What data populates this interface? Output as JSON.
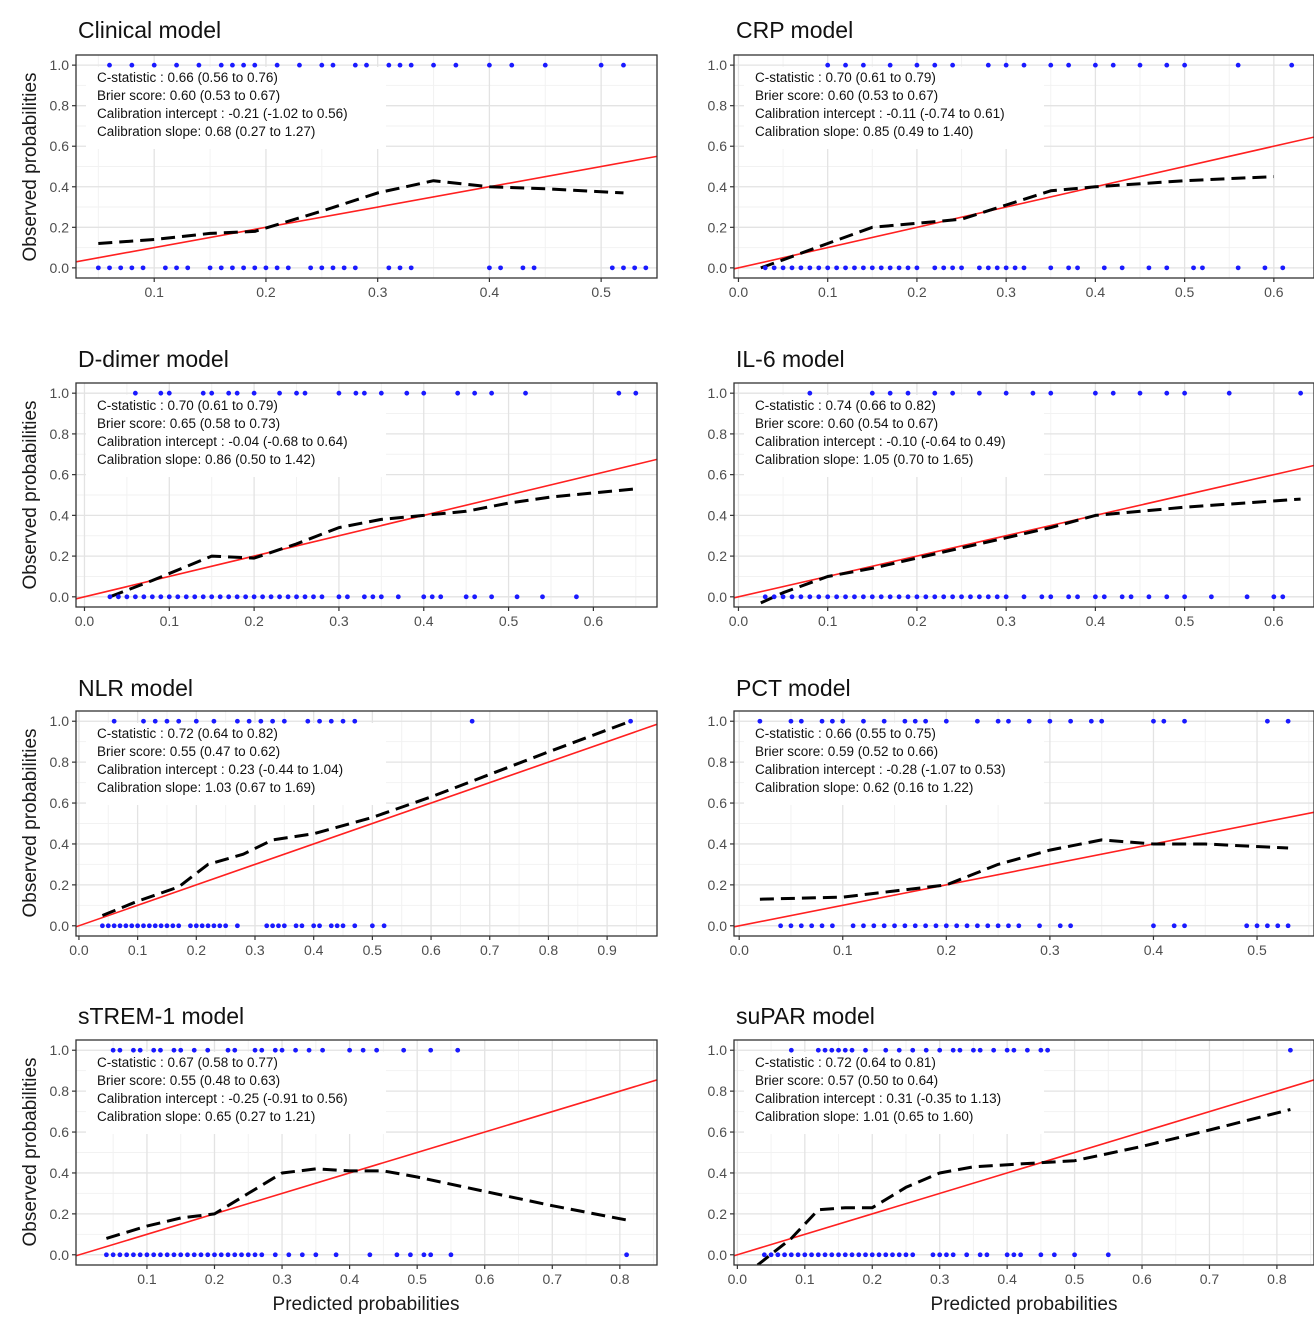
{
  "figure": {
    "ylabel": "Observed probabilities",
    "xlabel": "Predicted probabilities",
    "colors": {
      "ideal_line": "#ff2020",
      "calibration_curve": "#000000",
      "rug_points": "#1a1aff",
      "grid_major": "#e3e3e3",
      "grid_minor": "#f2f2f2",
      "panel_border": "#333333"
    }
  },
  "chart_data": [
    {
      "type": "line",
      "title": "Clinical model",
      "xlim": [
        0.03,
        0.55
      ],
      "ylim": [
        -0.05,
        1.05
      ],
      "xticks": [
        0.1,
        0.2,
        0.3,
        0.4,
        0.5
      ],
      "xtick_labels": [
        "0.1",
        "0.2",
        "0.3",
        "0.4",
        "0.5"
      ],
      "yticks": [
        0,
        0.2,
        0.4,
        0.6,
        0.8,
        1
      ],
      "ytick_labels": [
        "0.0",
        "0.2",
        "0.4",
        "0.6",
        "0.8",
        "1.0"
      ],
      "stats": [
        "C-statistic : 0.66 (0.56 to 0.76)",
        "Brier score:  0.60 (0.53  to 0.67)",
        "Calibration intercept : -0.21 (-1.02 to 0.56)",
        "Calibration slope:  0.68 (0.27 to 1.27)"
      ],
      "curve": {
        "x": [
          0.05,
          0.1,
          0.15,
          0.19,
          0.25,
          0.3,
          0.35,
          0.4,
          0.45,
          0.52
        ],
        "y": [
          0.12,
          0.14,
          0.17,
          0.18,
          0.28,
          0.37,
          0.43,
          0.4,
          0.39,
          0.37
        ]
      },
      "rug_top": [
        0.06,
        0.08,
        0.1,
        0.12,
        0.14,
        0.16,
        0.17,
        0.18,
        0.19,
        0.21,
        0.23,
        0.25,
        0.26,
        0.28,
        0.29,
        0.31,
        0.32,
        0.33,
        0.35,
        0.37,
        0.4,
        0.42,
        0.45,
        0.5,
        0.52
      ],
      "rug_bottom": [
        0.05,
        0.06,
        0.07,
        0.08,
        0.09,
        0.11,
        0.12,
        0.13,
        0.15,
        0.16,
        0.17,
        0.18,
        0.19,
        0.2,
        0.21,
        0.22,
        0.24,
        0.25,
        0.26,
        0.27,
        0.28,
        0.31,
        0.32,
        0.33,
        0.4,
        0.41,
        0.43,
        0.44,
        0.51,
        0.52,
        0.53,
        0.54
      ]
    },
    {
      "type": "line",
      "title": "CRP model",
      "xlim": [
        -0.005,
        0.645
      ],
      "ylim": [
        -0.05,
        1.05
      ],
      "xticks": [
        0,
        0.1,
        0.2,
        0.3,
        0.4,
        0.5,
        0.6
      ],
      "xtick_labels": [
        "0.0",
        "0.1",
        "0.2",
        "0.3",
        "0.4",
        "0.5",
        "0.6"
      ],
      "yticks": [
        0,
        0.2,
        0.4,
        0.6,
        0.8,
        1
      ],
      "ytick_labels": [
        "0.0",
        "0.2",
        "0.4",
        "0.6",
        "0.8",
        "1.0"
      ],
      "stats": [
        "C-statistic : 0.70 (0.61 to 0.79)",
        "Brier score:  0.60 (0.53 to 0.67)",
        "Calibration intercept : -0.11 (-0.74 to 0.61)",
        "Calibration slope:  0.85 (0.49 to 1.40)"
      ],
      "curve": {
        "x": [
          0.025,
          0.05,
          0.1,
          0.15,
          0.2,
          0.25,
          0.3,
          0.35,
          0.4,
          0.5,
          0.6
        ],
        "y": [
          0.0,
          0.04,
          0.12,
          0.2,
          0.22,
          0.24,
          0.31,
          0.38,
          0.4,
          0.43,
          0.45
        ]
      },
      "rug_top": [
        0.1,
        0.12,
        0.14,
        0.17,
        0.2,
        0.22,
        0.24,
        0.28,
        0.3,
        0.32,
        0.35,
        0.37,
        0.4,
        0.42,
        0.45,
        0.48,
        0.5,
        0.56,
        0.62
      ],
      "rug_bottom": [
        0.03,
        0.04,
        0.05,
        0.06,
        0.07,
        0.08,
        0.09,
        0.1,
        0.11,
        0.12,
        0.13,
        0.14,
        0.15,
        0.16,
        0.17,
        0.18,
        0.19,
        0.2,
        0.22,
        0.23,
        0.24,
        0.25,
        0.27,
        0.28,
        0.29,
        0.3,
        0.31,
        0.32,
        0.35,
        0.37,
        0.38,
        0.41,
        0.43,
        0.46,
        0.48,
        0.51,
        0.52,
        0.56,
        0.59,
        0.61
      ]
    },
    {
      "type": "line",
      "title": "D-dimer model",
      "xlim": [
        -0.01,
        0.675
      ],
      "ylim": [
        -0.05,
        1.05
      ],
      "xticks": [
        0,
        0.1,
        0.2,
        0.3,
        0.4,
        0.5,
        0.6
      ],
      "xtick_labels": [
        "0.0",
        "0.1",
        "0.2",
        "0.3",
        "0.4",
        "0.5",
        "0.6"
      ],
      "yticks": [
        0,
        0.2,
        0.4,
        0.6,
        0.8,
        1
      ],
      "ytick_labels": [
        "0.0",
        "0.2",
        "0.4",
        "0.6",
        "0.8",
        "1.0"
      ],
      "stats": [
        "C-statistic : 0.70 (0.61 to 0.79)",
        "Brier score:  0.65 (0.58 to 0.73)",
        "Calibration intercept : -0.04 (-0.68 to 0.64)",
        "Calibration slope:  0.86 (0.50 to 1.42)"
      ],
      "curve": {
        "x": [
          0.03,
          0.08,
          0.15,
          0.2,
          0.25,
          0.3,
          0.35,
          0.4,
          0.45,
          0.5,
          0.55,
          0.65
        ],
        "y": [
          0.0,
          0.08,
          0.2,
          0.19,
          0.26,
          0.34,
          0.38,
          0.4,
          0.42,
          0.46,
          0.49,
          0.53
        ]
      },
      "rug_top": [
        0.06,
        0.09,
        0.1,
        0.14,
        0.15,
        0.17,
        0.18,
        0.2,
        0.23,
        0.25,
        0.26,
        0.3,
        0.32,
        0.33,
        0.35,
        0.38,
        0.4,
        0.44,
        0.46,
        0.48,
        0.52,
        0.63,
        0.65
      ],
      "rug_bottom": [
        0.03,
        0.04,
        0.05,
        0.06,
        0.07,
        0.08,
        0.09,
        0.1,
        0.11,
        0.12,
        0.13,
        0.14,
        0.15,
        0.16,
        0.17,
        0.18,
        0.19,
        0.2,
        0.21,
        0.22,
        0.23,
        0.24,
        0.25,
        0.26,
        0.27,
        0.28,
        0.3,
        0.31,
        0.33,
        0.34,
        0.35,
        0.37,
        0.4,
        0.41,
        0.42,
        0.45,
        0.46,
        0.48,
        0.51,
        0.54,
        0.58
      ]
    },
    {
      "type": "line",
      "title": "IL-6 model",
      "xlim": [
        -0.005,
        0.645
      ],
      "ylim": [
        -0.05,
        1.05
      ],
      "xticks": [
        0,
        0.1,
        0.2,
        0.3,
        0.4,
        0.5,
        0.6
      ],
      "xtick_labels": [
        "0.0",
        "0.1",
        "0.2",
        "0.3",
        "0.4",
        "0.5",
        "0.6"
      ],
      "yticks": [
        0,
        0.2,
        0.4,
        0.6,
        0.8,
        1
      ],
      "ytick_labels": [
        "0.0",
        "0.2",
        "0.4",
        "0.6",
        "0.8",
        "1.0"
      ],
      "stats": [
        "C-statistic : 0.74 (0.66 to 0.82)",
        "Brier score:  0.60 (0.54 to 0.67)",
        "Calibration intercept : -0.10 (-0.64 to 0.49)",
        "Calibration slope:  1.05 (0.70 to 1.65)"
      ],
      "curve": {
        "x": [
          0.025,
          0.05,
          0.1,
          0.15,
          0.2,
          0.25,
          0.3,
          0.35,
          0.4,
          0.5,
          0.63
        ],
        "y": [
          -0.03,
          0.02,
          0.1,
          0.14,
          0.19,
          0.24,
          0.29,
          0.34,
          0.4,
          0.44,
          0.48
        ]
      },
      "rug_top": [
        0.08,
        0.15,
        0.17,
        0.19,
        0.22,
        0.24,
        0.27,
        0.3,
        0.33,
        0.35,
        0.4,
        0.42,
        0.45,
        0.48,
        0.5,
        0.55,
        0.63
      ],
      "rug_bottom": [
        0.03,
        0.04,
        0.05,
        0.06,
        0.07,
        0.08,
        0.09,
        0.1,
        0.11,
        0.12,
        0.13,
        0.14,
        0.15,
        0.16,
        0.17,
        0.18,
        0.19,
        0.2,
        0.21,
        0.22,
        0.23,
        0.24,
        0.25,
        0.26,
        0.27,
        0.28,
        0.29,
        0.3,
        0.32,
        0.34,
        0.35,
        0.37,
        0.38,
        0.4,
        0.41,
        0.43,
        0.44,
        0.46,
        0.48,
        0.5,
        0.53,
        0.57,
        0.6,
        0.61
      ]
    },
    {
      "type": "line",
      "title": "NLR model",
      "xlim": [
        -0.005,
        0.985
      ],
      "ylim": [
        -0.05,
        1.05
      ],
      "xticks": [
        0,
        0.1,
        0.2,
        0.3,
        0.4,
        0.5,
        0.6,
        0.7,
        0.8,
        0.9
      ],
      "xtick_labels": [
        "0.0",
        "0.1",
        "0.2",
        "0.3",
        "0.4",
        "0.5",
        "0.6",
        "0.7",
        "0.8",
        "0.9"
      ],
      "yticks": [
        0,
        0.2,
        0.4,
        0.6,
        0.8,
        1
      ],
      "ytick_labels": [
        "0.0",
        "0.2",
        "0.4",
        "0.6",
        "0.8",
        "1.0"
      ],
      "stats": [
        "C-statistic : 0.72 (0.64 to 0.82)",
        "Brier score:  0.55 (0.47 to 0.62)",
        "Calibration intercept : 0.23 (-0.44 to 1.04)",
        "Calibration slope:  1.03 (0.67 to 1.69)"
      ],
      "curve": {
        "x": [
          0.04,
          0.1,
          0.17,
          0.22,
          0.28,
          0.33,
          0.4,
          0.5,
          0.6,
          0.7,
          0.8,
          0.94
        ],
        "y": [
          0.05,
          0.12,
          0.19,
          0.3,
          0.35,
          0.42,
          0.45,
          0.53,
          0.63,
          0.74,
          0.85,
          1.0
        ]
      },
      "rug_top": [
        0.06,
        0.11,
        0.13,
        0.15,
        0.17,
        0.2,
        0.23,
        0.27,
        0.29,
        0.31,
        0.33,
        0.35,
        0.39,
        0.41,
        0.43,
        0.45,
        0.47,
        0.67,
        0.94
      ],
      "rug_bottom": [
        0.04,
        0.05,
        0.06,
        0.07,
        0.08,
        0.09,
        0.1,
        0.11,
        0.12,
        0.13,
        0.14,
        0.15,
        0.16,
        0.17,
        0.19,
        0.2,
        0.21,
        0.22,
        0.23,
        0.24,
        0.25,
        0.27,
        0.32,
        0.33,
        0.34,
        0.35,
        0.37,
        0.38,
        0.4,
        0.41,
        0.43,
        0.44,
        0.45,
        0.47,
        0.5,
        0.52
      ]
    },
    {
      "type": "line",
      "title": "PCT model",
      "xlim": [
        -0.005,
        0.555
      ],
      "ylim": [
        -0.05,
        1.05
      ],
      "xticks": [
        0,
        0.1,
        0.2,
        0.3,
        0.4,
        0.5
      ],
      "xtick_labels": [
        "0.0",
        "0.1",
        "0.2",
        "0.3",
        "0.4",
        "0.5"
      ],
      "yticks": [
        0,
        0.2,
        0.4,
        0.6,
        0.8,
        1
      ],
      "ytick_labels": [
        "0.0",
        "0.2",
        "0.4",
        "0.6",
        "0.8",
        "1.0"
      ],
      "stats": [
        "C-statistic : 0.66 (0.55 to 0.75)",
        "Brier score:  0.59 (0.52 to 0.66)",
        "Calibration intercept : -0.28 (-1.07 to 0.53)",
        "Calibration slope:  0.62 (0.16 to 1.22)"
      ],
      "curve": {
        "x": [
          0.02,
          0.1,
          0.15,
          0.2,
          0.25,
          0.3,
          0.35,
          0.4,
          0.45,
          0.53
        ],
        "y": [
          0.13,
          0.14,
          0.17,
          0.2,
          0.3,
          0.37,
          0.42,
          0.4,
          0.4,
          0.38
        ]
      },
      "rug_top": [
        0.02,
        0.05,
        0.06,
        0.08,
        0.09,
        0.1,
        0.12,
        0.14,
        0.16,
        0.17,
        0.18,
        0.2,
        0.23,
        0.25,
        0.26,
        0.28,
        0.3,
        0.32,
        0.34,
        0.35,
        0.4,
        0.41,
        0.43,
        0.51,
        0.53
      ],
      "rug_bottom": [
        0.04,
        0.05,
        0.06,
        0.07,
        0.08,
        0.09,
        0.11,
        0.12,
        0.13,
        0.14,
        0.15,
        0.16,
        0.17,
        0.18,
        0.19,
        0.2,
        0.21,
        0.22,
        0.23,
        0.24,
        0.25,
        0.26,
        0.27,
        0.29,
        0.31,
        0.32,
        0.4,
        0.42,
        0.43,
        0.49,
        0.5,
        0.51,
        0.52,
        0.53
      ]
    },
    {
      "type": "line",
      "title": "sTREM-1 model",
      "xlim": [
        -0.005,
        0.855
      ],
      "ylim": [
        -0.05,
        1.05
      ],
      "xticks": [
        0.1,
        0.2,
        0.3,
        0.4,
        0.5,
        0.6,
        0.7,
        0.8
      ],
      "xtick_labels": [
        "0.1",
        "0.2",
        "0.3",
        "0.4",
        "0.5",
        "0.6",
        "0.7",
        "0.8"
      ],
      "yticks": [
        0,
        0.2,
        0.4,
        0.6,
        0.8,
        1
      ],
      "ytick_labels": [
        "0.0",
        "0.2",
        "0.4",
        "0.6",
        "0.8",
        "1.0"
      ],
      "stats": [
        "C-statistic : 0.67 (0.58 to 0.77)",
        "Brier score:  0.55 (0.48 to 0.63)",
        "Calibration intercept : -0.25 (-0.91 to 0.56)",
        "Calibration slope:  0.65 (0.27 to 1.21)"
      ],
      "curve": {
        "x": [
          0.04,
          0.1,
          0.15,
          0.2,
          0.25,
          0.3,
          0.35,
          0.4,
          0.45,
          0.5,
          0.6,
          0.7,
          0.81
        ],
        "y": [
          0.08,
          0.14,
          0.18,
          0.2,
          0.3,
          0.4,
          0.42,
          0.41,
          0.41,
          0.38,
          0.31,
          0.24,
          0.17
        ]
      },
      "rug_top": [
        0.05,
        0.06,
        0.08,
        0.09,
        0.11,
        0.12,
        0.14,
        0.15,
        0.17,
        0.19,
        0.22,
        0.23,
        0.26,
        0.27,
        0.29,
        0.3,
        0.32,
        0.34,
        0.36,
        0.4,
        0.42,
        0.44,
        0.48,
        0.52,
        0.56
      ],
      "rug_bottom": [
        0.04,
        0.05,
        0.06,
        0.07,
        0.08,
        0.09,
        0.1,
        0.11,
        0.12,
        0.13,
        0.14,
        0.15,
        0.16,
        0.17,
        0.18,
        0.19,
        0.2,
        0.21,
        0.22,
        0.23,
        0.24,
        0.25,
        0.26,
        0.27,
        0.29,
        0.31,
        0.33,
        0.35,
        0.38,
        0.43,
        0.47,
        0.49,
        0.51,
        0.52,
        0.55,
        0.81
      ]
    },
    {
      "type": "line",
      "title": "suPAR model",
      "xlim": [
        -0.005,
        0.855
      ],
      "ylim": [
        -0.05,
        1.05
      ],
      "xticks": [
        0,
        0.1,
        0.2,
        0.3,
        0.4,
        0.5,
        0.6,
        0.7,
        0.8
      ],
      "xtick_labels": [
        "0.0",
        "0.1",
        "0.2",
        "0.3",
        "0.4",
        "0.5",
        "0.6",
        "0.7",
        "0.8"
      ],
      "yticks": [
        0,
        0.2,
        0.4,
        0.6,
        0.8,
        1
      ],
      "ytick_labels": [
        "0.0",
        "0.2",
        "0.4",
        "0.6",
        "0.8",
        "1.0"
      ],
      "stats": [
        "C-statistic : 0.72 (0.64 to 0.81)",
        "Brier score:  0.57 (0.50 to 0.64)",
        "Calibration intercept : 0.31 (-0.35 to 1.13)",
        "Calibration slope:  1.01 (0.65 to 1.60)"
      ],
      "curve": {
        "x": [
          0.03,
          0.08,
          0.12,
          0.16,
          0.2,
          0.25,
          0.3,
          0.35,
          0.45,
          0.5,
          0.6,
          0.7,
          0.82
        ],
        "y": [
          -0.05,
          0.08,
          0.22,
          0.23,
          0.23,
          0.33,
          0.4,
          0.43,
          0.45,
          0.46,
          0.53,
          0.61,
          0.71
        ]
      },
      "rug_top": [
        0.08,
        0.12,
        0.13,
        0.14,
        0.15,
        0.16,
        0.17,
        0.19,
        0.22,
        0.24,
        0.26,
        0.28,
        0.3,
        0.32,
        0.33,
        0.35,
        0.36,
        0.38,
        0.4,
        0.41,
        0.43,
        0.45,
        0.46,
        0.82
      ],
      "rug_bottom": [
        0.04,
        0.05,
        0.06,
        0.07,
        0.08,
        0.09,
        0.1,
        0.11,
        0.12,
        0.13,
        0.14,
        0.15,
        0.16,
        0.17,
        0.18,
        0.19,
        0.2,
        0.21,
        0.22,
        0.23,
        0.24,
        0.25,
        0.26,
        0.29,
        0.3,
        0.31,
        0.32,
        0.34,
        0.36,
        0.37,
        0.4,
        0.41,
        0.42,
        0.45,
        0.47,
        0.5,
        0.55
      ]
    }
  ]
}
